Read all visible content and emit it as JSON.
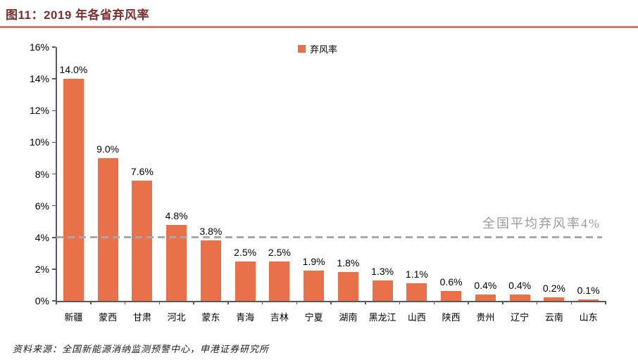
{
  "figure": {
    "title": "图11：2019 年各省弃风率",
    "source": "资料来源：全国新能源消纳监测预警中心，申港证券研究所"
  },
  "chart_data": {
    "type": "bar",
    "title": "2019 年各省弃风率",
    "categories": [
      "新疆",
      "蒙西",
      "甘肃",
      "河北",
      "蒙东",
      "青海",
      "吉林",
      "宁夏",
      "湖南",
      "黑龙江",
      "山西",
      "陕西",
      "贵州",
      "辽宁",
      "云南",
      "山东"
    ],
    "series": [
      {
        "name": "弃风率",
        "values": [
          14.0,
          9.0,
          7.6,
          4.8,
          3.8,
          2.5,
          2.5,
          1.9,
          1.8,
          1.3,
          1.1,
          0.6,
          0.4,
          0.4,
          0.2,
          0.1
        ]
      }
    ],
    "data_labels": [
      "14.0%",
      "9.0%",
      "7.6%",
      "4.8%",
      "3.8%",
      "2.5%",
      "2.5%",
      "1.9%",
      "1.8%",
      "1.3%",
      "1.1%",
      "0.6%",
      "0.4%",
      "0.4%",
      "0.2%",
      "0.1%"
    ],
    "xlabel": "",
    "ylabel": "",
    "ylim": [
      0,
      16
    ],
    "ytick_step": 2,
    "ytick_labels": [
      "0%",
      "2%",
      "4%",
      "6%",
      "8%",
      "10%",
      "12%",
      "14%",
      "16%"
    ],
    "grid": false,
    "legend_position": "top-center",
    "reference_line": {
      "value": 4,
      "label": "全国平均弃风率4%",
      "style": "dashed",
      "color": "#A8A8A8"
    },
    "bar_color": "#E8714A",
    "axis_color": "#595959",
    "title_color": "#7D2E2E",
    "divider_color": "#C8806C"
  }
}
